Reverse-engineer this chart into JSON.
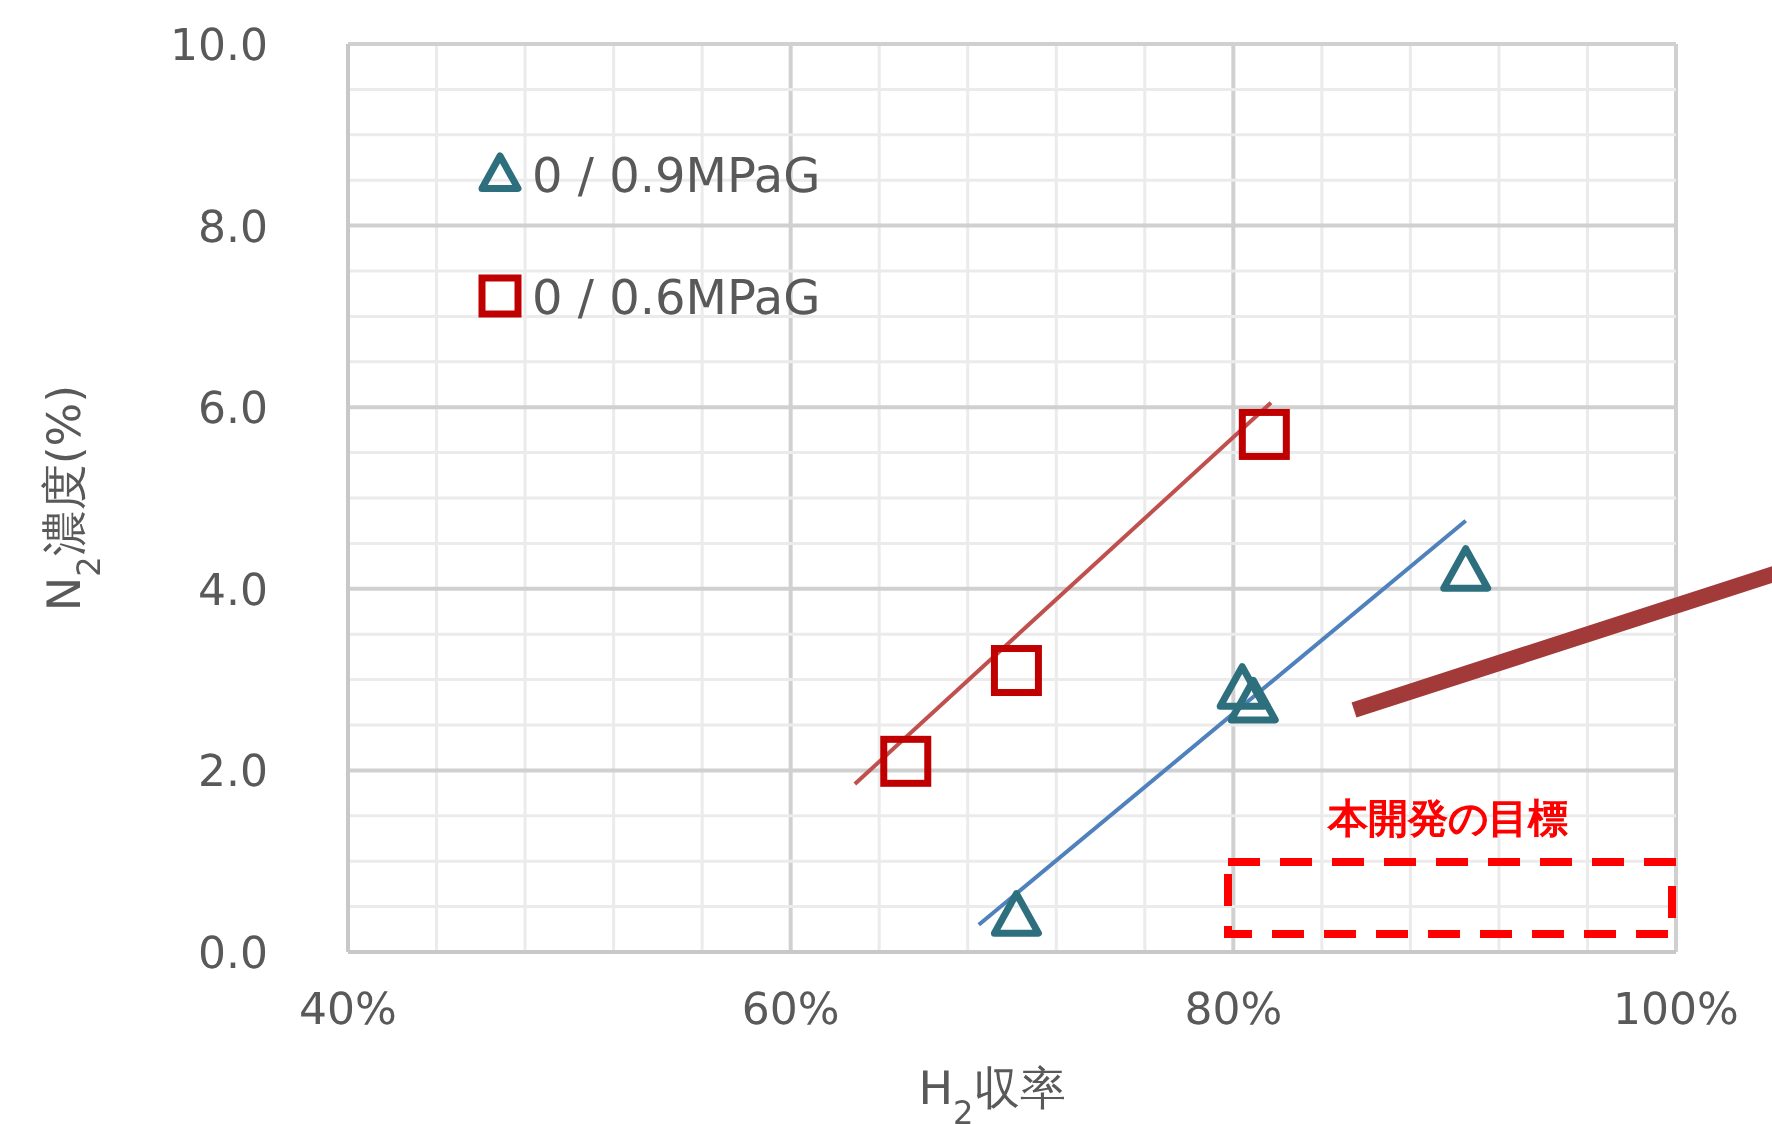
{
  "chart_data": {
    "type": "scatter",
    "xlabel": "H$_{2}$収率",
    "ylabel": "N$_{2}$濃度(%)",
    "xlim": [
      40,
      100
    ],
    "ylim": [
      0,
      10
    ],
    "xticks": [
      {
        "value": 40,
        "label": "40%"
      },
      {
        "value": 44,
        "label": null
      },
      {
        "value": 48,
        "label": null
      },
      {
        "value": 52,
        "label": null
      },
      {
        "value": 56,
        "label": null
      },
      {
        "value": 60,
        "label": "60%"
      },
      {
        "value": 64,
        "label": null
      },
      {
        "value": 68,
        "label": null
      },
      {
        "value": 72,
        "label": null
      },
      {
        "value": 76,
        "label": null
      },
      {
        "value": 80,
        "label": "80%"
      },
      {
        "value": 84,
        "label": null
      },
      {
        "value": 88,
        "label": null
      },
      {
        "value": 92,
        "label": null
      },
      {
        "value": 96,
        "label": null
      },
      {
        "value": 100,
        "label": "100%"
      }
    ],
    "yticks": [
      {
        "value": 0,
        "label": "0.0"
      },
      {
        "value": 0.5,
        "label": null
      },
      {
        "value": 1,
        "label": null
      },
      {
        "value": 1.5,
        "label": null
      },
      {
        "value": 2,
        "label": "2.0"
      },
      {
        "value": 2.5,
        "label": null
      },
      {
        "value": 3,
        "label": null
      },
      {
        "value": 3.5,
        "label": null
      },
      {
        "value": 4,
        "label": "4.0"
      },
      {
        "value": 4.5,
        "label": null
      },
      {
        "value": 5,
        "label": null
      },
      {
        "value": 5.5,
        "label": null
      },
      {
        "value": 6,
        "label": "6.0"
      },
      {
        "value": 6.5,
        "label": null
      },
      {
        "value": 7,
        "label": null
      },
      {
        "value": 7.5,
        "label": null
      },
      {
        "value": 8,
        "label": "8.0"
      },
      {
        "value": 8.5,
        "label": null
      },
      {
        "value": 9,
        "label": null
      },
      {
        "value": 9.5,
        "label": null
      },
      {
        "value": 10,
        "label": "10.0"
      }
    ],
    "grid": true,
    "legend": "top left",
    "series": [
      {
        "name": "0 / 0.9MPaG",
        "color": "#2e6f7e",
        "marker": "triangle",
        "x": [
          70.2,
          80.4,
          80.9,
          90.5
        ],
        "values": [
          0.4,
          2.9,
          2.75,
          4.2
        ]
      },
      {
        "name": "0 / 0.6MPaG",
        "color": "#c00000",
        "marker": "square",
        "x": [
          65.2,
          70.2,
          81.4
        ],
        "values": [
          2.1,
          3.1,
          5.7
        ]
      },
      {
        "type": "line",
        "color": "#4f81bd",
        "x": [
          68.5,
          90.5
        ],
        "values": [
          0.3,
          4.75
        ]
      },
      {
        "type": "line",
        "color": "#c0504d",
        "x": [
          62.9,
          81.7
        ],
        "values": [
          1.85,
          6.05
        ]
      }
    ],
    "annotations": [
      "本開発の目標"
    ]
  }
}
